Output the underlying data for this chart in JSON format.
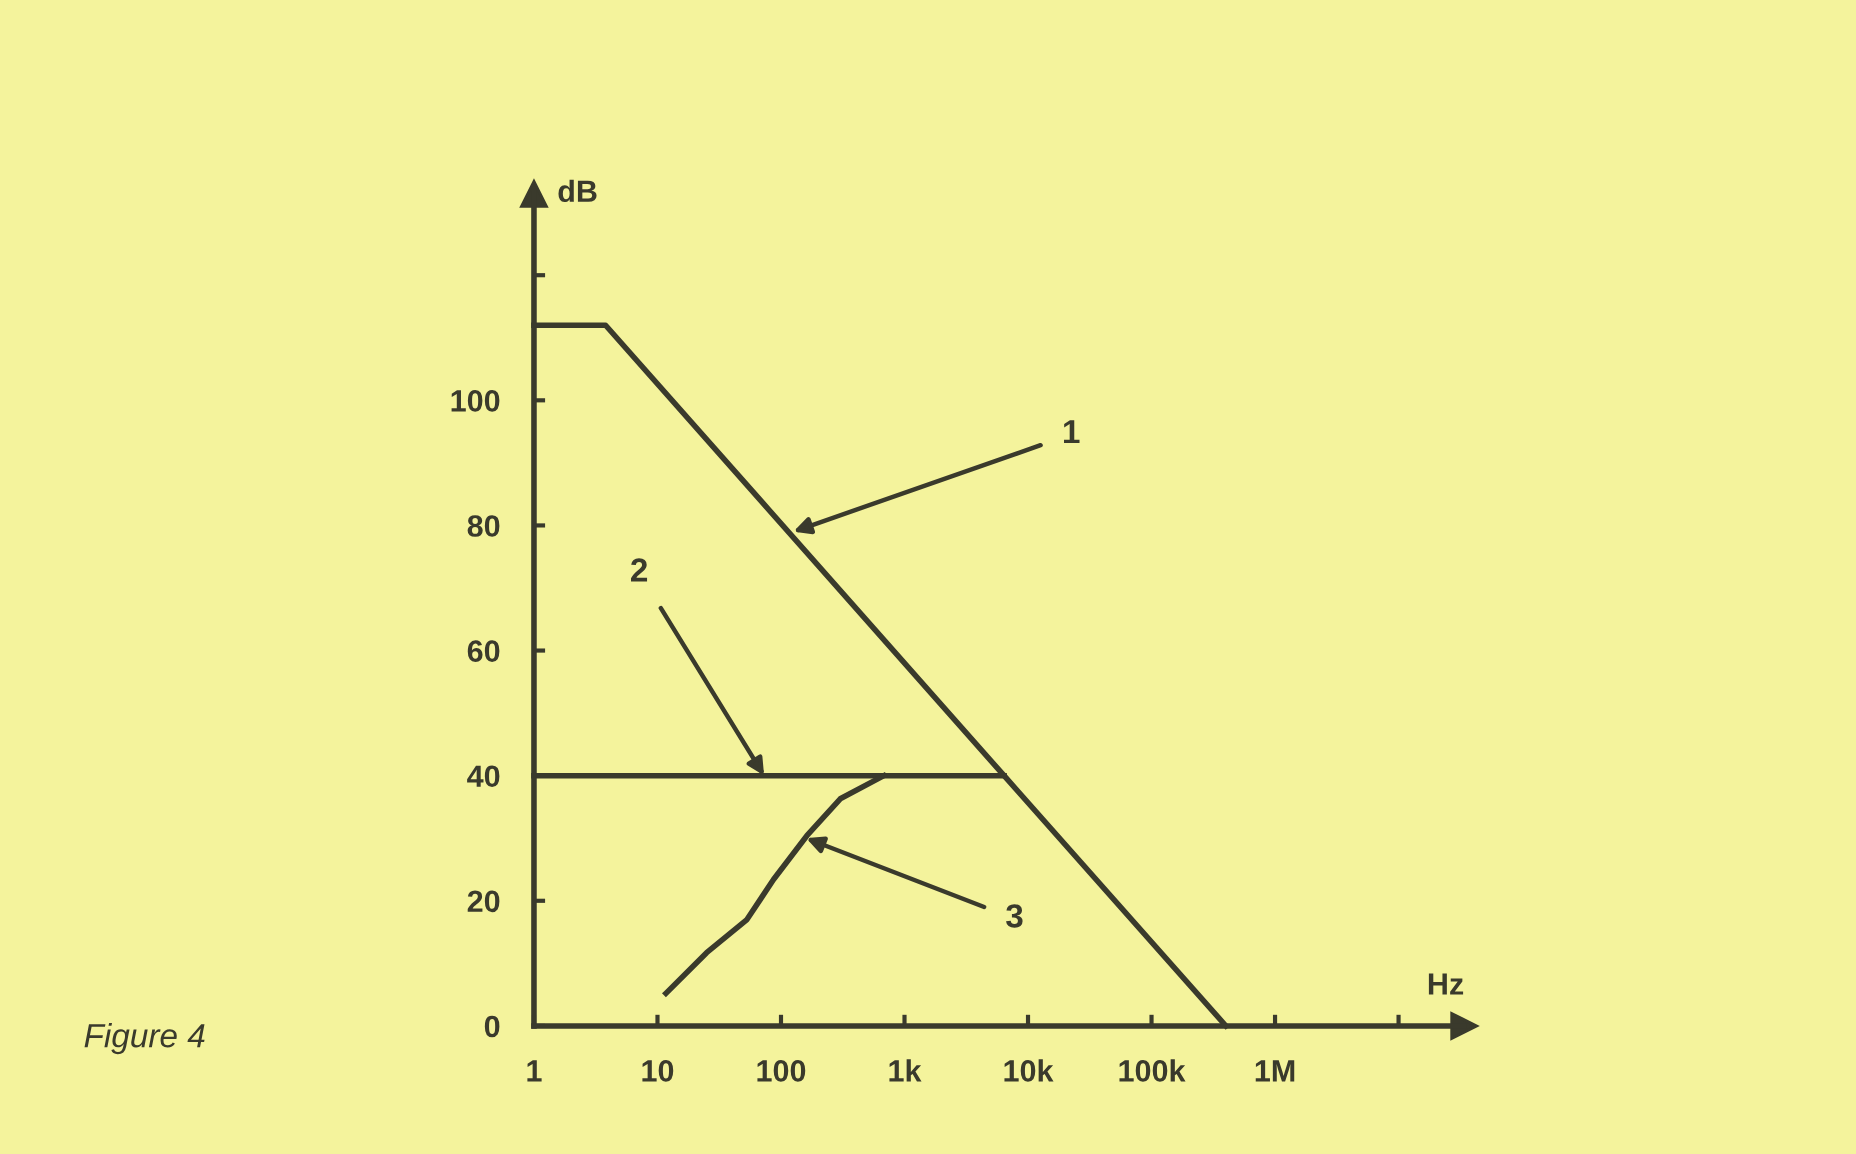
{
  "chart_data": {
    "type": "line",
    "xlabel": "Hz",
    "ylabel": "dB",
    "log": "x",
    "xlim": [
      1,
      34000000
    ],
    "ylim": [
      0,
      133
    ],
    "xticks": [
      {
        "value": 1,
        "label": "1"
      },
      {
        "value": 10,
        "label": "10"
      },
      {
        "value": 100,
        "label": "100"
      },
      {
        "value": 1000,
        "label": "1k"
      },
      {
        "value": 10000,
        "label": "10k"
      },
      {
        "value": 100000,
        "label": "100k"
      },
      {
        "value": 1000000,
        "label": "1M"
      },
      {
        "value": 10000000,
        "label": null
      }
    ],
    "yticks": [
      0,
      20,
      40,
      60,
      80,
      100,
      {
        "value": 120,
        "label": null
      }
    ],
    "grid": false,
    "line_style": "solid",
    "marker": "none",
    "series": [
      {
        "color": "#3a3a2c",
        "x": [
          1,
          3.8,
          6400,
          400000
        ],
        "values": [
          112,
          112,
          40,
          0
        ]
      },
      {
        "color": "#3a3a2c",
        "x": [
          1,
          6400
        ],
        "values": [
          40,
          40
        ]
      },
      {
        "color": "#3a3a2c",
        "x": [
          11.7,
          25,
          53,
          87,
          162,
          302,
          680
        ],
        "values": [
          5.2,
          11.7,
          17,
          23.4,
          30.4,
          36.3,
          40
        ]
      }
    ],
    "annotations": [
      {
        "text": "1",
        "x": 126,
        "y": 79
      },
      {
        "text": "2",
        "x": 73,
        "y": 40
      },
      {
        "text": "3",
        "x": 160,
        "y": 30
      },
      "Figure 4"
    ]
  }
}
